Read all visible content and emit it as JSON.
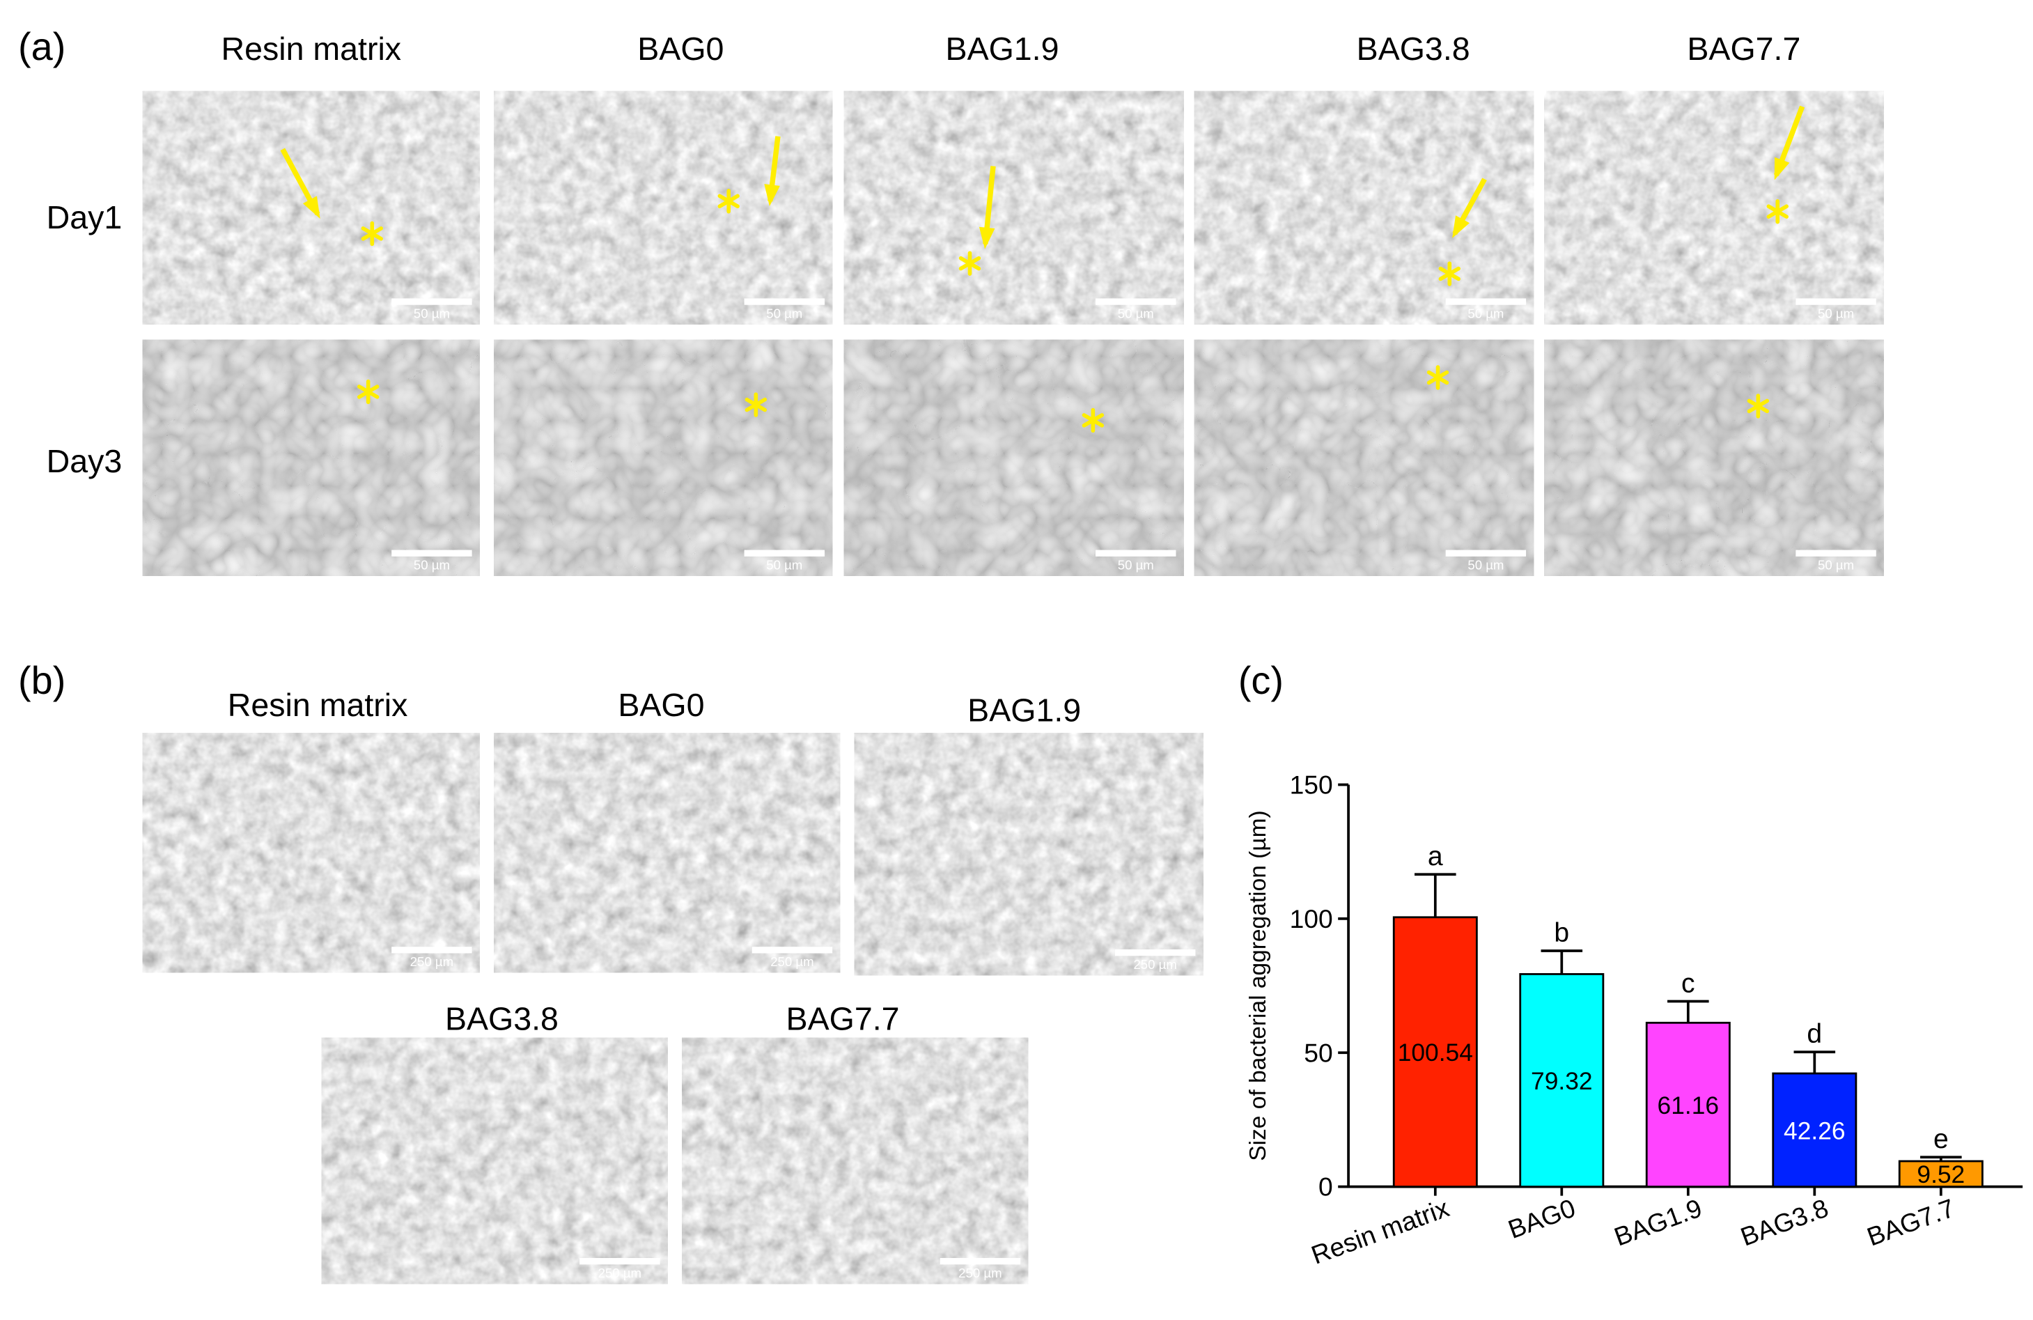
{
  "panel_a": {
    "label": "(a)",
    "columns": [
      "Resin matrix",
      "BAG0",
      "BAG1.9",
      "BAG3.8",
      "BAG7.7"
    ],
    "rows": [
      {
        "label": "Day1",
        "scale_bars": [
          "50 µm",
          "50 µm",
          "50 µm",
          "50 µm",
          "50 µm"
        ]
      },
      {
        "label": "Day3",
        "scale_bars": [
          "50 µm",
          "50 µm",
          "50 µm",
          "50 µm",
          "50 µm"
        ]
      }
    ]
  },
  "panel_b": {
    "label": "(b)",
    "images": [
      {
        "title": "Resin matrix",
        "scale_bar": "250 µm"
      },
      {
        "title": "BAG0",
        "scale_bar": "250 µm"
      },
      {
        "title": "BAG1.9",
        "scale_bar": "250 µm"
      },
      {
        "title": "BAG3.8",
        "scale_bar": "250 µm"
      },
      {
        "title": "BAG7.7",
        "scale_bar": "250 µm"
      }
    ]
  },
  "chart_data": {
    "type": "bar",
    "label": "(c)",
    "y_label": "Size of bacterial aggregation (µm)",
    "categories": [
      "Resin matrix",
      "BAG0",
      "BAG1.9",
      "BAG3.8",
      "BAG7.7"
    ],
    "values": [
      100.54,
      79.32,
      61.16,
      42.26,
      9.52
    ],
    "errors": [
      16,
      8.7,
      8,
      8,
      1.5
    ],
    "annotations": [
      "a",
      "b",
      "c",
      "d",
      "e"
    ],
    "colors": [
      "#ff2200",
      "#00ffff",
      "#ff44ff",
      "#0022ff",
      "#ff9900"
    ],
    "ylim": [
      0,
      150
    ],
    "yticks": [
      0,
      50,
      100,
      150
    ],
    "grid": false
  }
}
